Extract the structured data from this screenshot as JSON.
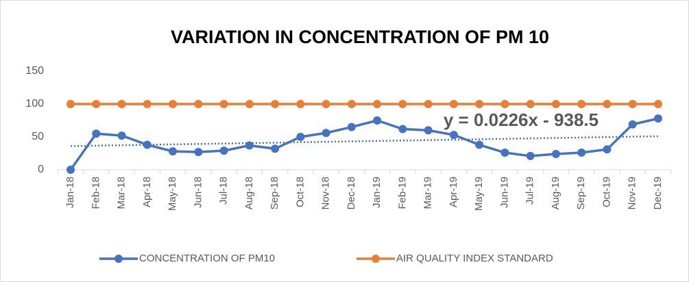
{
  "chart_data": {
    "type": "line",
    "title": "VARIATION IN CONCENTRATION OF PM 10",
    "categories": [
      "Jan-18",
      "Feb-18",
      "Mar-18",
      "Apr-18",
      "May-18",
      "Jun-18",
      "Jul-18",
      "Aug-18",
      "Sep-18",
      "Oct-18",
      "Nov-18",
      "Dec-18",
      "Jan-19",
      "Feb-19",
      "Mar-19",
      "Apr-19",
      "May-19",
      "Jun-19",
      "Jul-19",
      "Aug-19",
      "Sep-19",
      "Oct-19",
      "Nov-19",
      "Dec-19"
    ],
    "series": [
      {
        "name": "CONCENTRATION OF PM10",
        "color": "#4472c4",
        "values": [
          0,
          55,
          52,
          38,
          28,
          27,
          29,
          37,
          32,
          50,
          56,
          65,
          75,
          62,
          60,
          53,
          38,
          26,
          21,
          24,
          26,
          31,
          69,
          78
        ]
      },
      {
        "name": "AIR QUALITY INDEX STANDARD",
        "color": "#ed7d31",
        "values": [
          100,
          100,
          100,
          100,
          100,
          100,
          100,
          100,
          100,
          100,
          100,
          100,
          100,
          100,
          100,
          100,
          100,
          100,
          100,
          100,
          100,
          100,
          100,
          100
        ]
      }
    ],
    "trendline": {
      "label": "y = 0.0226x - 938.5",
      "color": "#4472c4",
      "start": 36,
      "end": 51
    },
    "ylim": [
      0,
      150
    ],
    "yticks": [
      0,
      50,
      100,
      150
    ],
    "grid": false,
    "legend": "bottom"
  }
}
